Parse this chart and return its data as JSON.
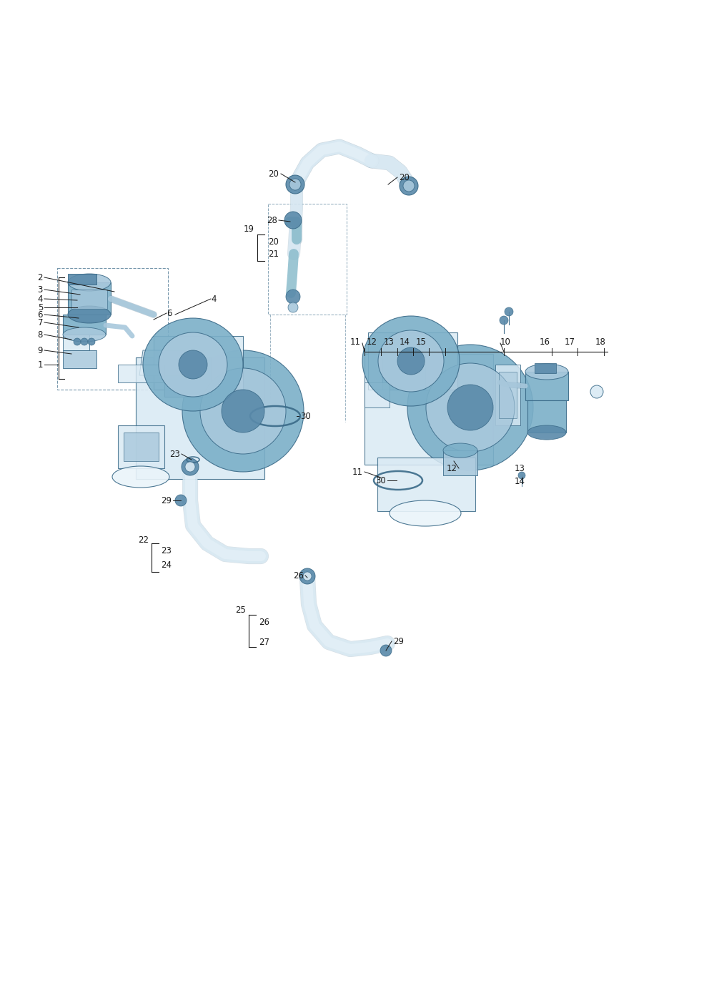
{
  "background_color": "#ffffff",
  "fig_width": 9.92,
  "fig_height": 14.03,
  "dpi": 100,
  "line_color": "#1a1a1a",
  "label_fontsize": 8.5,
  "diagram_bg": "#daeaf4",
  "diagram_mid": "#a8c8dc",
  "diagram_dark": "#5a8aaa",
  "diagram_light": "#eaf4fa",
  "turbo_blue": "#7bafc8",
  "pipe_color": "#8bbccc",
  "edge_color": "#3a6a88"
}
